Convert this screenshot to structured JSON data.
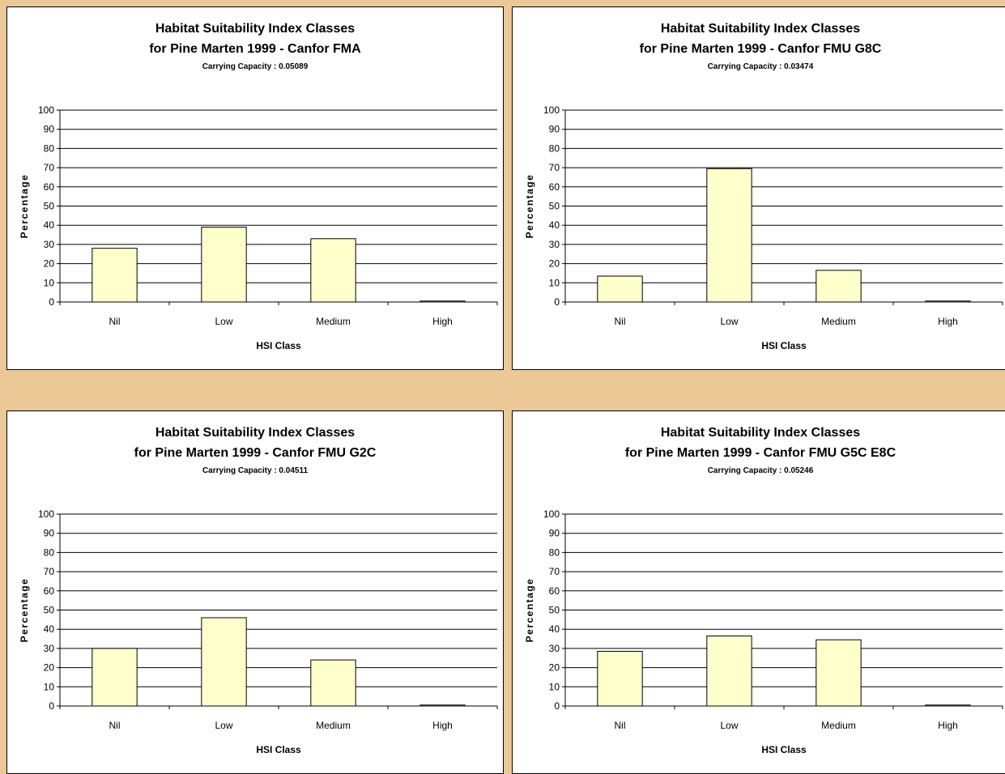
{
  "colors": {
    "background": "#ecc896",
    "bar_fill": "#ffffcc",
    "bar_stroke": "#000000",
    "gridline": "#000000"
  },
  "chart_data": [
    {
      "type": "bar",
      "title": "Habitat Suitability Index Classes",
      "subtitle": "for Pine Marten 1999 - Canfor FMA",
      "note": "Carrying Capacity : 0.05089",
      "xlabel": "HSI Class",
      "ylabel": "Percentage",
      "categories": [
        "Nil",
        "Low",
        "Medium",
        "High"
      ],
      "values": [
        28,
        39,
        33,
        0.5
      ],
      "ylim": [
        0,
        100
      ],
      "yticks": [
        0,
        10,
        20,
        30,
        40,
        50,
        60,
        70,
        80,
        90,
        100
      ],
      "grid": true,
      "legend": "none"
    },
    {
      "type": "bar",
      "title": "Habitat Suitability Index Classes",
      "subtitle": "for Pine Marten 1999 - Canfor FMU G8C",
      "note": "Carrying Capacity : 0.03474",
      "xlabel": "HSI Class",
      "ylabel": "Percentage",
      "categories": [
        "Nil",
        "Low",
        "Medium",
        "High"
      ],
      "values": [
        13.5,
        69.5,
        16.5,
        0.5
      ],
      "ylim": [
        0,
        100
      ],
      "yticks": [
        0,
        10,
        20,
        30,
        40,
        50,
        60,
        70,
        80,
        90,
        100
      ],
      "grid": true,
      "legend": "none"
    },
    {
      "type": "bar",
      "title": "Habitat Suitability Index Classes",
      "subtitle": "for Pine Marten 1999 - Canfor FMU G2C",
      "note": "Carrying Capacity : 0.04511",
      "xlabel": "HSI Class",
      "ylabel": "Percentage",
      "categories": [
        "Nil",
        "Low",
        "Medium",
        "High"
      ],
      "values": [
        30,
        46,
        24,
        0.5
      ],
      "ylim": [
        0,
        100
      ],
      "yticks": [
        0,
        10,
        20,
        30,
        40,
        50,
        60,
        70,
        80,
        90,
        100
      ],
      "grid": true,
      "legend": "none"
    },
    {
      "type": "bar",
      "title": "Habitat Suitability Index Classes",
      "subtitle": "for Pine Marten 1999 - Canfor FMU G5C E8C",
      "note": "Carrying Capacity : 0.05246",
      "xlabel": "HSI Class",
      "ylabel": "Percentage",
      "categories": [
        "Nil",
        "Low",
        "Medium",
        "High"
      ],
      "values": [
        28.5,
        36.5,
        34.5,
        0.5
      ],
      "ylim": [
        0,
        100
      ],
      "yticks": [
        0,
        10,
        20,
        30,
        40,
        50,
        60,
        70,
        80,
        90,
        100
      ],
      "grid": true,
      "legend": "none"
    }
  ]
}
